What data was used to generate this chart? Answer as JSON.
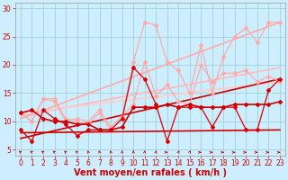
{
  "background_color": "#cceeff",
  "grid_color": "#99cccc",
  "xlabel": "Vent moyen/en rafales ( km/h )",
  "xlabel_color": "#cc0000",
  "xlabel_fontsize": 7,
  "tick_color": "#cc0000",
  "xlim": [
    -0.5,
    23.5
  ],
  "ylim": [
    4,
    31
  ],
  "yticks": [
    5,
    10,
    15,
    20,
    25,
    30
  ],
  "xticks": [
    0,
    1,
    2,
    3,
    4,
    5,
    6,
    7,
    8,
    9,
    10,
    11,
    12,
    13,
    14,
    15,
    16,
    17,
    18,
    19,
    20,
    21,
    22,
    23
  ],
  "lines": [
    {
      "x": [
        0,
        1,
        2,
        3,
        4,
        5,
        6,
        7,
        8,
        9,
        10,
        11,
        12,
        13,
        14,
        15,
        16,
        17,
        18,
        19,
        20,
        21,
        22,
        23
      ],
      "y": [
        11.5,
        10.0,
        14.0,
        14.0,
        10.5,
        10.0,
        9.5,
        11.5,
        8.5,
        10.5,
        20.5,
        27.5,
        27.0,
        20.5,
        19.0,
        15.0,
        23.5,
        15.0,
        21.5,
        25.0,
        26.5,
        24.0,
        27.5,
        27.5
      ],
      "color": "#ffaaaa",
      "lw": 0.9,
      "marker": "D",
      "ms": 2.0,
      "zorder": 3
    },
    {
      "x": [
        0,
        1,
        2,
        3,
        4,
        5,
        6,
        7,
        8,
        9,
        10,
        11,
        12,
        13,
        14,
        15,
        16,
        17,
        18,
        19,
        20,
        21,
        22,
        23
      ],
      "y": [
        11.5,
        10.0,
        14.0,
        13.5,
        10.0,
        10.5,
        10.0,
        12.0,
        9.0,
        11.0,
        13.0,
        20.5,
        14.5,
        16.5,
        13.5,
        13.0,
        20.0,
        17.0,
        18.5,
        18.5,
        19.0,
        17.0,
        18.0,
        17.0
      ],
      "color": "#ffaaaa",
      "lw": 0.9,
      "marker": "D",
      "ms": 2.0,
      "zorder": 3
    },
    {
      "x": [
        0,
        23
      ],
      "y": [
        10.5,
        27.5
      ],
      "color": "#ffaaaa",
      "lw": 1.2,
      "marker": null,
      "ms": 0,
      "zorder": 2
    },
    {
      "x": [
        0,
        23
      ],
      "y": [
        11.0,
        19.5
      ],
      "color": "#ffbbbb",
      "lw": 1.2,
      "marker": null,
      "ms": 0,
      "zorder": 2
    },
    {
      "x": [
        0,
        23
      ],
      "y": [
        11.5,
        17.0
      ],
      "color": "#ffcccc",
      "lw": 1.2,
      "marker": null,
      "ms": 0,
      "zorder": 2
    },
    {
      "x": [
        0,
        1,
        2,
        3,
        4,
        5,
        6,
        7,
        8,
        9,
        10,
        11,
        12,
        13,
        14,
        15,
        16,
        17,
        18,
        19,
        20,
        21,
        22,
        23
      ],
      "y": [
        8.5,
        6.5,
        12.0,
        10.5,
        9.5,
        7.5,
        8.5,
        8.5,
        8.5,
        10.5,
        19.5,
        17.5,
        13.0,
        6.5,
        12.5,
        12.5,
        12.5,
        9.0,
        12.5,
        12.5,
        8.5,
        8.5,
        15.5,
        17.5
      ],
      "color": "#dd0000",
      "lw": 0.9,
      "marker": "D",
      "ms": 2.0,
      "zorder": 4
    },
    {
      "x": [
        0,
        1,
        2,
        3,
        4,
        5,
        6,
        7,
        8,
        9,
        10,
        11,
        12,
        13,
        14,
        15,
        16,
        17,
        18,
        19,
        20,
        21,
        22,
        23
      ],
      "y": [
        11.5,
        12.0,
        10.5,
        10.0,
        10.0,
        9.5,
        9.5,
        8.5,
        8.5,
        9.0,
        12.5,
        12.5,
        12.5,
        13.0,
        12.5,
        13.0,
        12.5,
        12.5,
        12.5,
        13.0,
        13.0,
        13.0,
        13.0,
        13.5
      ],
      "color": "#cc0000",
      "lw": 1.2,
      "marker": "D",
      "ms": 2.0,
      "zorder": 4
    },
    {
      "x": [
        0,
        23
      ],
      "y": [
        8.0,
        8.5
      ],
      "color": "#cc0000",
      "lw": 1.2,
      "marker": null,
      "ms": 0,
      "zorder": 2
    },
    {
      "x": [
        0,
        23
      ],
      "y": [
        7.0,
        17.5
      ],
      "color": "#cc0000",
      "lw": 1.2,
      "marker": null,
      "ms": 0,
      "zorder": 2
    }
  ],
  "wind_symbols": [
    0,
    1,
    2,
    3,
    4,
    5,
    6,
    7,
    8,
    9,
    10,
    11,
    12,
    13,
    14,
    15,
    16,
    17,
    18,
    19,
    20,
    21,
    22,
    23
  ],
  "wind_angles_deg": [
    225,
    225,
    225,
    220,
    215,
    210,
    200,
    200,
    195,
    185,
    180,
    175,
    165,
    90,
    160,
    155,
    90,
    90,
    90,
    90,
    90,
    90,
    90,
    90
  ]
}
